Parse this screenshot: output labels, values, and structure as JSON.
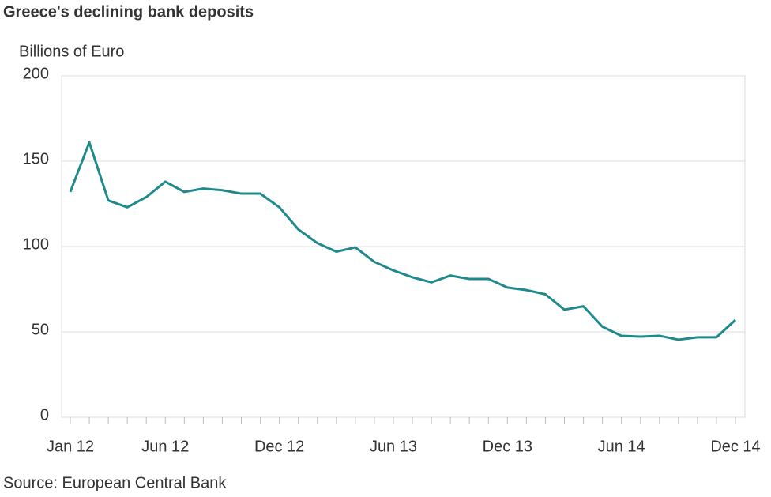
{
  "chart_data": {
    "type": "line",
    "title": "Greece's declining bank deposits",
    "y_label": "Billions of Euro",
    "source": "Source: European Central Bank",
    "categories": [
      "Jan 12",
      null,
      null,
      null,
      null,
      "Jun 12",
      null,
      null,
      null,
      null,
      null,
      "Dec 12",
      null,
      null,
      null,
      null,
      null,
      "Jun 13",
      null,
      null,
      null,
      null,
      null,
      "Dec 13",
      null,
      null,
      null,
      null,
      null,
      "Jun 14",
      null,
      null,
      null,
      null,
      null,
      "Dec 14"
    ],
    "series": [
      {
        "name": "Bank deposits",
        "color": "#1f8a8c",
        "values": [
          132,
          161,
          127,
          123,
          129,
          138,
          132,
          134,
          133,
          131,
          131,
          123,
          110,
          102,
          97,
          99.5,
          91,
          86,
          82,
          79,
          83,
          81,
          81,
          76,
          74.5,
          72,
          63,
          65,
          53,
          47.7,
          47.2,
          47.7,
          45.4,
          46.8,
          46.8,
          57
        ]
      }
    ],
    "ylim": [
      0,
      200
    ],
    "yticks": [
      0,
      50,
      100,
      150,
      200
    ],
    "grid": true
  }
}
